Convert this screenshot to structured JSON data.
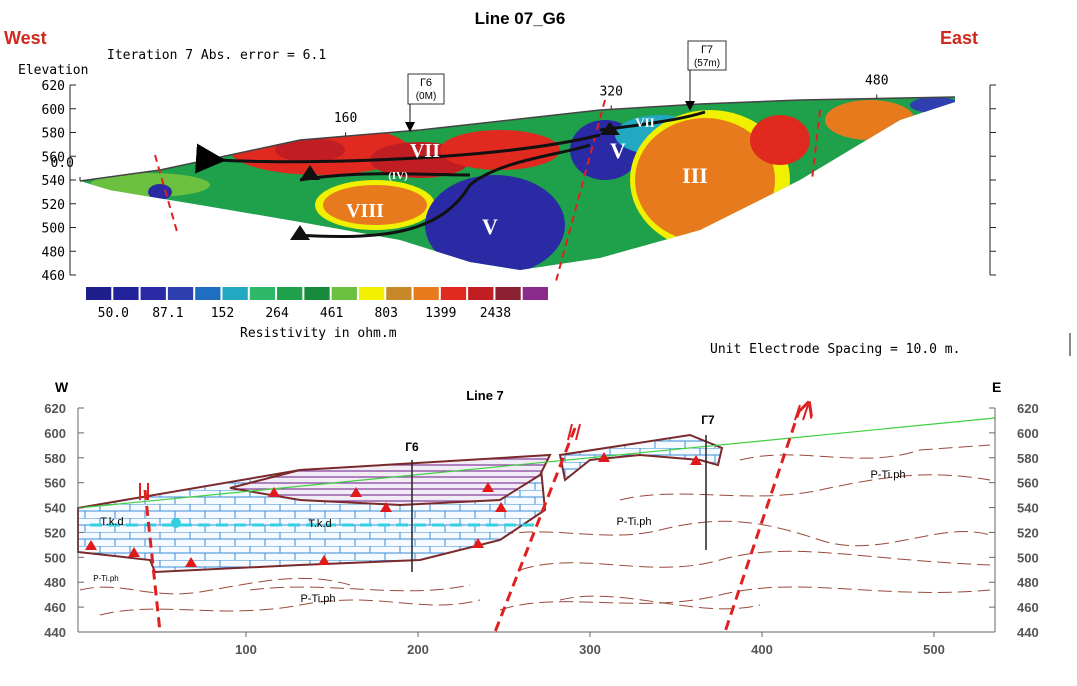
{
  "header": {
    "title": "Line 07_G6",
    "west": "West",
    "east": "East",
    "iteration": "Iteration 7 Abs. error = 6.1"
  },
  "top_section": {
    "y_axis_label": "Elevation",
    "ylim": [
      460,
      620
    ],
    "yticks": [
      620,
      600,
      580,
      560,
      540,
      520,
      500,
      480,
      460
    ],
    "distance_ticks": [
      {
        "value": 0,
        "label": "0.0"
      },
      160,
      320,
      480
    ],
    "zones": [
      "VII",
      "(IV)",
      "VIII",
      "V",
      "V",
      "VII",
      "III"
    ],
    "boreholes": [
      {
        "name": "Г6",
        "depth": "(0M)"
      },
      {
        "name": "Г7",
        "depth": "(57m)"
      }
    ],
    "colorbar": {
      "colors": [
        "#1e1e8c",
        "#22229a",
        "#2a2aa5",
        "#2f3fb0",
        "#1f6fc0",
        "#22a8c0",
        "#2fb86a",
        "#1fa04a",
        "#168a3a",
        "#6cc040",
        "#f0f000",
        "#c8882a",
        "#e87a1e",
        "#e02a20",
        "#c01e22",
        "#8a2030",
        "#8a2a8a"
      ],
      "labels": [
        {
          "value": 50,
          "label": "50.0"
        },
        87.1,
        152,
        264,
        461,
        803,
        1399,
        2438
      ],
      "title": "Resistivity in ohm.m"
    },
    "note": "Unit Electrode Spacing = 10.0 m."
  },
  "bottom_section": {
    "title": "Line 7",
    "west": "W",
    "east": "E",
    "ylim": [
      440,
      620
    ],
    "yticks": [
      620,
      600,
      580,
      560,
      540,
      520,
      500,
      480,
      460,
      440
    ],
    "xlim": [
      0,
      535
    ],
    "xticks": [
      100,
      200,
      300,
      400,
      500
    ],
    "boreholes": [
      "Г6",
      "Г7"
    ],
    "units": [
      "T.k.d",
      "T.k.d",
      "P-Ti.ph",
      "P-Ti.ph",
      "P-Ti.ph",
      "P-Ti.ph"
    ]
  }
}
